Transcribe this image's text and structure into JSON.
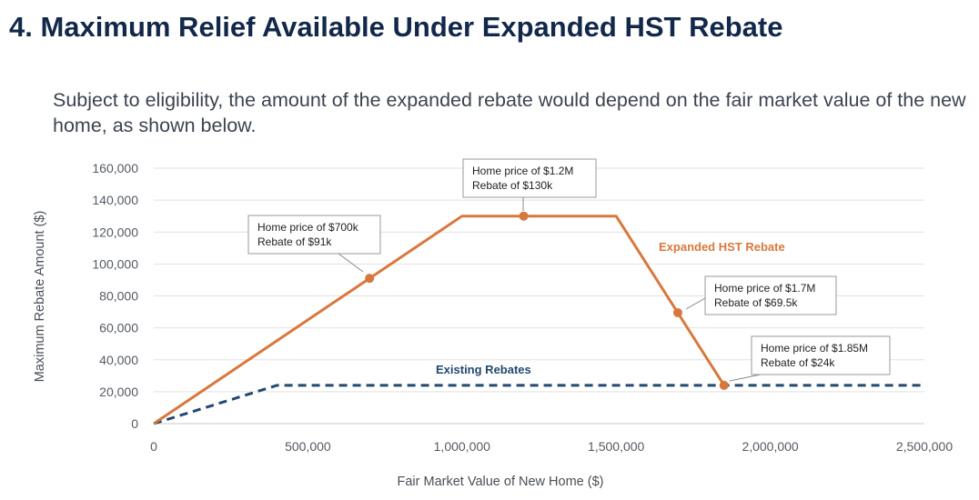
{
  "page": {
    "title": "4. Maximum Relief Available Under Expanded HST Rebate",
    "subtitle": "Subject to eligibility, the amount of the expanded rebate would depend on the fair market value of the new home, as shown below."
  },
  "chart_data": {
    "type": "line",
    "xlabel": "Fair Market Value of New Home ($)",
    "ylabel": "Maximum Rebate Amount ($)",
    "xlim": [
      0,
      2500000
    ],
    "ylim": [
      0,
      160000
    ],
    "x_ticks": [
      0,
      500000,
      1000000,
      1500000,
      2000000,
      2500000
    ],
    "x_tick_labels": [
      "0",
      "500,000",
      "1,000,000",
      "1,500,000",
      "2,000,000",
      "2,500,000"
    ],
    "y_ticks": [
      0,
      20000,
      40000,
      60000,
      80000,
      100000,
      120000,
      140000,
      160000
    ],
    "y_tick_labels": [
      "0",
      "20,000",
      "40,000",
      "60,000",
      "80,000",
      "100,000",
      "120,000",
      "140,000",
      "160,000"
    ],
    "grid": "horizontal",
    "series": [
      {
        "name": "Expanded HST Rebate",
        "color": "#d9783d",
        "style": "solid",
        "x": [
          0,
          1000000,
          1500000,
          1850000
        ],
        "y": [
          0,
          130000,
          130000,
          24000
        ]
      },
      {
        "name": "Existing Rebates",
        "color": "#23496e",
        "style": "dashed",
        "x": [
          0,
          400000,
          2500000
        ],
        "y": [
          0,
          24000,
          24000
        ]
      }
    ],
    "markers": [
      {
        "x": 700000,
        "y": 91000
      },
      {
        "x": 1200000,
        "y": 130000
      },
      {
        "x": 1700000,
        "y": 69500
      },
      {
        "x": 1850000,
        "y": 24000
      }
    ],
    "annotations": [
      {
        "line1": "Home price of $700k",
        "line2": "Rebate of $91k"
      },
      {
        "line1": "Home price of $1.2M",
        "line2": "Rebate of $130k"
      },
      {
        "line1": "Home price of $1.7M",
        "line2": "Rebate of $69.5k"
      },
      {
        "line1": "Home price of $1.85M",
        "line2": "Rebate of $24k"
      }
    ]
  }
}
